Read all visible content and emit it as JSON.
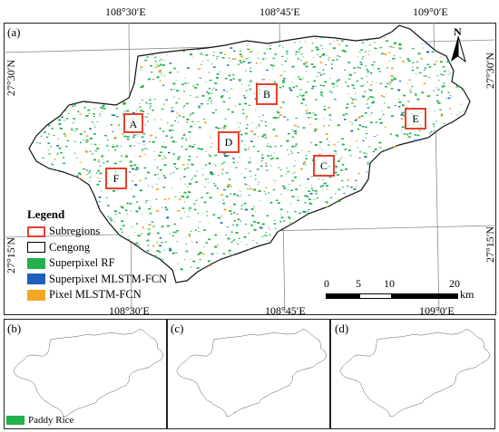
{
  "main_panel": {
    "label": "(a)",
    "top_coords": [
      "108°30′E",
      "108°45′E",
      "109°0′E"
    ],
    "bottom_coords": [
      "108°30′E",
      "108°45′E",
      "109°0′E"
    ],
    "left_coords": [
      "27°30′N",
      "27°15′N"
    ],
    "right_coords": [
      "27°30′N",
      "27°15′N"
    ],
    "north_label": "N"
  },
  "legend": {
    "title": "Legend",
    "items": [
      {
        "label": "Subregions",
        "color": "#e8412d",
        "kind": "outline"
      },
      {
        "label": "Cengong",
        "color": "#000000",
        "kind": "outline"
      },
      {
        "label": "Superpixel RF",
        "color": "#22b14c",
        "kind": "fill"
      },
      {
        "label": "Superpixel MLSTM-FCN",
        "color": "#1f5fbf",
        "kind": "fill"
      },
      {
        "label": "Pixel MLSTM-FCN",
        "color": "#f5a623",
        "kind": "fill"
      }
    ]
  },
  "scale_bar": {
    "ticks": [
      "0",
      "5",
      "10",
      "20"
    ],
    "unit": "km"
  },
  "subregions": [
    {
      "id": "A"
    },
    {
      "id": "B"
    },
    {
      "id": "C"
    },
    {
      "id": "D"
    },
    {
      "id": "E"
    },
    {
      "id": "F"
    }
  ],
  "subpanels": [
    {
      "label": "(b)"
    },
    {
      "label": "(c)"
    },
    {
      "label": "(d)"
    }
  ],
  "bottom_legend": {
    "label": "Paddy Rice",
    "color": "#22b14c"
  }
}
